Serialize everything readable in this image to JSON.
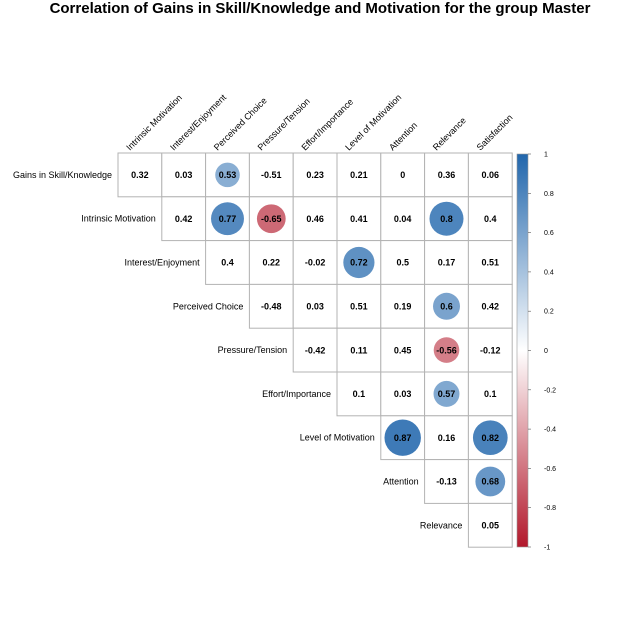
{
  "chart_data": {
    "type": "heatmap",
    "title": "Correlation of Gains in Skill/Knowledge and Motivation for the group Master",
    "columns": [
      "Intrinsic Motivation",
      "Interest/Enjoyment",
      "Perceived Choice",
      "Pressure/Tension",
      "Effort/Importance",
      "Level of Motivation",
      "Attention",
      "Relevance",
      "Satisfaction"
    ],
    "rows": [
      "Gains in Skill/Knowledge",
      "Intrinsic Motivation",
      "Interest/Enjoyment",
      "Perceived Choice",
      "Pressure/Tension",
      "Effort/Importance",
      "Level of Motivation",
      "Attention",
      "Relevance"
    ],
    "values": [
      [
        0.32,
        0.03,
        0.53,
        -0.51,
        0.23,
        0.21,
        0,
        0.36,
        0.06
      ],
      [
        null,
        0.42,
        0.77,
        -0.65,
        0.46,
        0.41,
        0.04,
        0.8,
        0.4
      ],
      [
        null,
        null,
        0.4,
        0.22,
        -0.02,
        0.72,
        0.5,
        0.17,
        0.51
      ],
      [
        null,
        null,
        null,
        -0.48,
        0.03,
        0.51,
        0.19,
        0.6,
        0.42
      ],
      [
        null,
        null,
        null,
        null,
        -0.42,
        0.11,
        0.45,
        -0.56,
        -0.12
      ],
      [
        null,
        null,
        null,
        null,
        null,
        0.1,
        0.03,
        0.57,
        0.1
      ],
      [
        null,
        null,
        null,
        null,
        null,
        null,
        0.87,
        0.16,
        0.82
      ],
      [
        null,
        null,
        null,
        null,
        null,
        null,
        null,
        -0.13,
        0.68
      ],
      [
        null,
        null,
        null,
        null,
        null,
        null,
        null,
        null,
        0.05
      ]
    ],
    "significant": [
      [
        false,
        false,
        true,
        false,
        false,
        false,
        false,
        false,
        false
      ],
      [
        false,
        false,
        true,
        true,
        false,
        false,
        false,
        true,
        false
      ],
      [
        false,
        false,
        false,
        false,
        false,
        true,
        false,
        false,
        false
      ],
      [
        false,
        false,
        false,
        false,
        false,
        false,
        false,
        true,
        false
      ],
      [
        false,
        false,
        false,
        false,
        false,
        false,
        false,
        true,
        false
      ],
      [
        false,
        false,
        false,
        false,
        false,
        false,
        false,
        true,
        false
      ],
      [
        false,
        false,
        false,
        false,
        false,
        false,
        true,
        false,
        true
      ],
      [
        false,
        false,
        false,
        false,
        false,
        false,
        false,
        false,
        true
      ],
      [
        false,
        false,
        false,
        false,
        false,
        false,
        false,
        false,
        false
      ]
    ],
    "colorbar": {
      "ticks": [
        "1",
        "0.8",
        "0.6",
        "0.4",
        "0.2",
        "0",
        "-0.2",
        "-0.4",
        "-0.6",
        "-0.8",
        "-1"
      ],
      "range": [
        -1,
        1
      ],
      "low_color": "#B2182B",
      "mid_color": "#FFFFFF",
      "high_color": "#2166AC"
    }
  }
}
